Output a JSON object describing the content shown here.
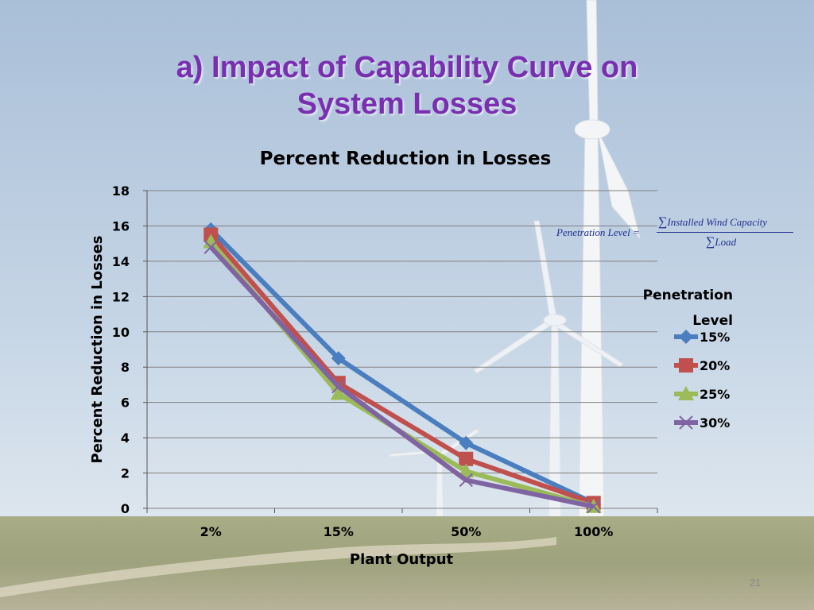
{
  "slide": {
    "title_line1": "a) Impact of Capability Curve on",
    "title_line2": "System Losses",
    "page_number": "21",
    "title_color": "#7a2fb0"
  },
  "formula": {
    "lhs": "Penetration Level =",
    "numerator": "Installed Wind Capacity",
    "denominator": "Load",
    "sum_symbol": "∑"
  },
  "chart_data": {
    "type": "line",
    "title": "Percent Reduction in Losses",
    "xlabel": "Plant Output",
    "ylabel": "Percent Reduction in Losses",
    "categories": [
      "2%",
      "15%",
      "50%",
      "100%"
    ],
    "ylim": [
      0,
      18
    ],
    "yticks": [
      0,
      2,
      4,
      6,
      8,
      10,
      12,
      14,
      16,
      18
    ],
    "grid": true,
    "legend_title": "Penetration Level",
    "legend_position": "right",
    "series": [
      {
        "name": "15%",
        "marker": "diamond",
        "color": "#4a7ebf",
        "values": [
          15.8,
          8.5,
          3.7,
          0.3
        ]
      },
      {
        "name": "20%",
        "marker": "square",
        "color": "#c0504d",
        "values": [
          15.5,
          7.1,
          2.8,
          0.3
        ]
      },
      {
        "name": "25%",
        "marker": "triangle",
        "color": "#9bbb59",
        "values": [
          15.1,
          6.5,
          2.1,
          0.1
        ]
      },
      {
        "name": "30%",
        "marker": "x",
        "color": "#8064a2",
        "values": [
          14.8,
          6.9,
          1.6,
          0.1
        ]
      }
    ]
  }
}
